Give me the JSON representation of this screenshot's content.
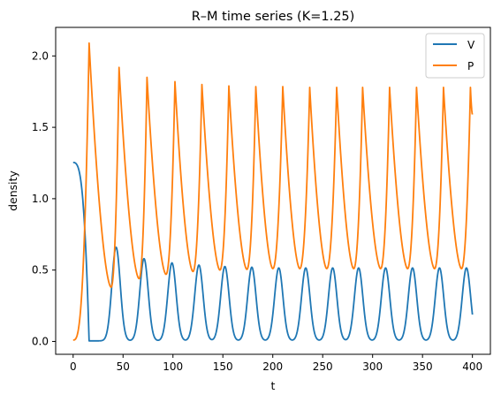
{
  "chart_data": {
    "type": "line",
    "title": "R–M time series (K=1.25)",
    "xlabel": "t",
    "ylabel": "density",
    "xlim": [
      -17.5,
      418
    ],
    "ylim": [
      -0.09,
      2.2
    ],
    "xticks": [
      0,
      50,
      100,
      150,
      200,
      250,
      300,
      350,
      400
    ],
    "yticks": [
      0.0,
      0.5,
      1.0,
      1.5,
      2.0
    ],
    "xtick_labels": [
      "0",
      "50",
      "100",
      "150",
      "200",
      "250",
      "300",
      "350",
      "400"
    ],
    "ytick_labels": [
      "0.0",
      "0.5",
      "1.0",
      "1.5",
      "2.0"
    ],
    "grid": false,
    "legend_position": "top-right",
    "series": [
      {
        "name": "V",
        "color": "#1f77b4",
        "initial": 1.25,
        "final": 0.03,
        "peaks": [
          {
            "t": 0,
            "v": 1.25
          },
          {
            "t": 43,
            "v": 0.66
          },
          {
            "t": 71,
            "v": 0.58
          },
          {
            "t": 99,
            "v": 0.55
          },
          {
            "t": 126,
            "v": 0.535
          },
          {
            "t": 152,
            "v": 0.525
          },
          {
            "t": 179,
            "v": 0.52
          },
          {
            "t": 206,
            "v": 0.515
          },
          {
            "t": 233,
            "v": 0.515
          },
          {
            "t": 260,
            "v": 0.515
          },
          {
            "t": 286,
            "v": 0.515
          },
          {
            "t": 313,
            "v": 0.515
          },
          {
            "t": 340,
            "v": 0.515
          },
          {
            "t": 367,
            "v": 0.515
          },
          {
            "t": 394,
            "v": 0.515
          }
        ]
      },
      {
        "name": "P",
        "color": "#ff7f0e",
        "initial": 0.01,
        "final": 1.59,
        "peaks": [
          {
            "t": 16,
            "v": 2.09
          },
          {
            "t": 46,
            "v": 1.92
          },
          {
            "t": 74,
            "v": 1.85
          },
          {
            "t": 102,
            "v": 1.82
          },
          {
            "t": 129,
            "v": 1.8
          },
          {
            "t": 156,
            "v": 1.79
          },
          {
            "t": 183,
            "v": 1.785
          },
          {
            "t": 210,
            "v": 1.785
          },
          {
            "t": 237,
            "v": 1.78
          },
          {
            "t": 264,
            "v": 1.78
          },
          {
            "t": 290,
            "v": 1.78
          },
          {
            "t": 317,
            "v": 1.78
          },
          {
            "t": 344,
            "v": 1.78
          },
          {
            "t": 371,
            "v": 1.78
          },
          {
            "t": 398,
            "v": 1.78
          }
        ],
        "troughs": [
          {
            "t": 38,
            "v": 0.38
          },
          {
            "t": 66,
            "v": 0.44
          },
          {
            "t": 93,
            "v": 0.47
          },
          {
            "t": 120,
            "v": 0.49
          },
          {
            "t": 147,
            "v": 0.5
          },
          {
            "t": 174,
            "v": 0.505
          },
          {
            "t": 200,
            "v": 0.51
          },
          {
            "t": 227,
            "v": 0.51
          },
          {
            "t": 254,
            "v": 0.51
          },
          {
            "t": 281,
            "v": 0.51
          },
          {
            "t": 308,
            "v": 0.51
          },
          {
            "t": 335,
            "v": 0.51
          },
          {
            "t": 362,
            "v": 0.51
          },
          {
            "t": 389,
            "v": 0.51
          }
        ]
      }
    ]
  }
}
